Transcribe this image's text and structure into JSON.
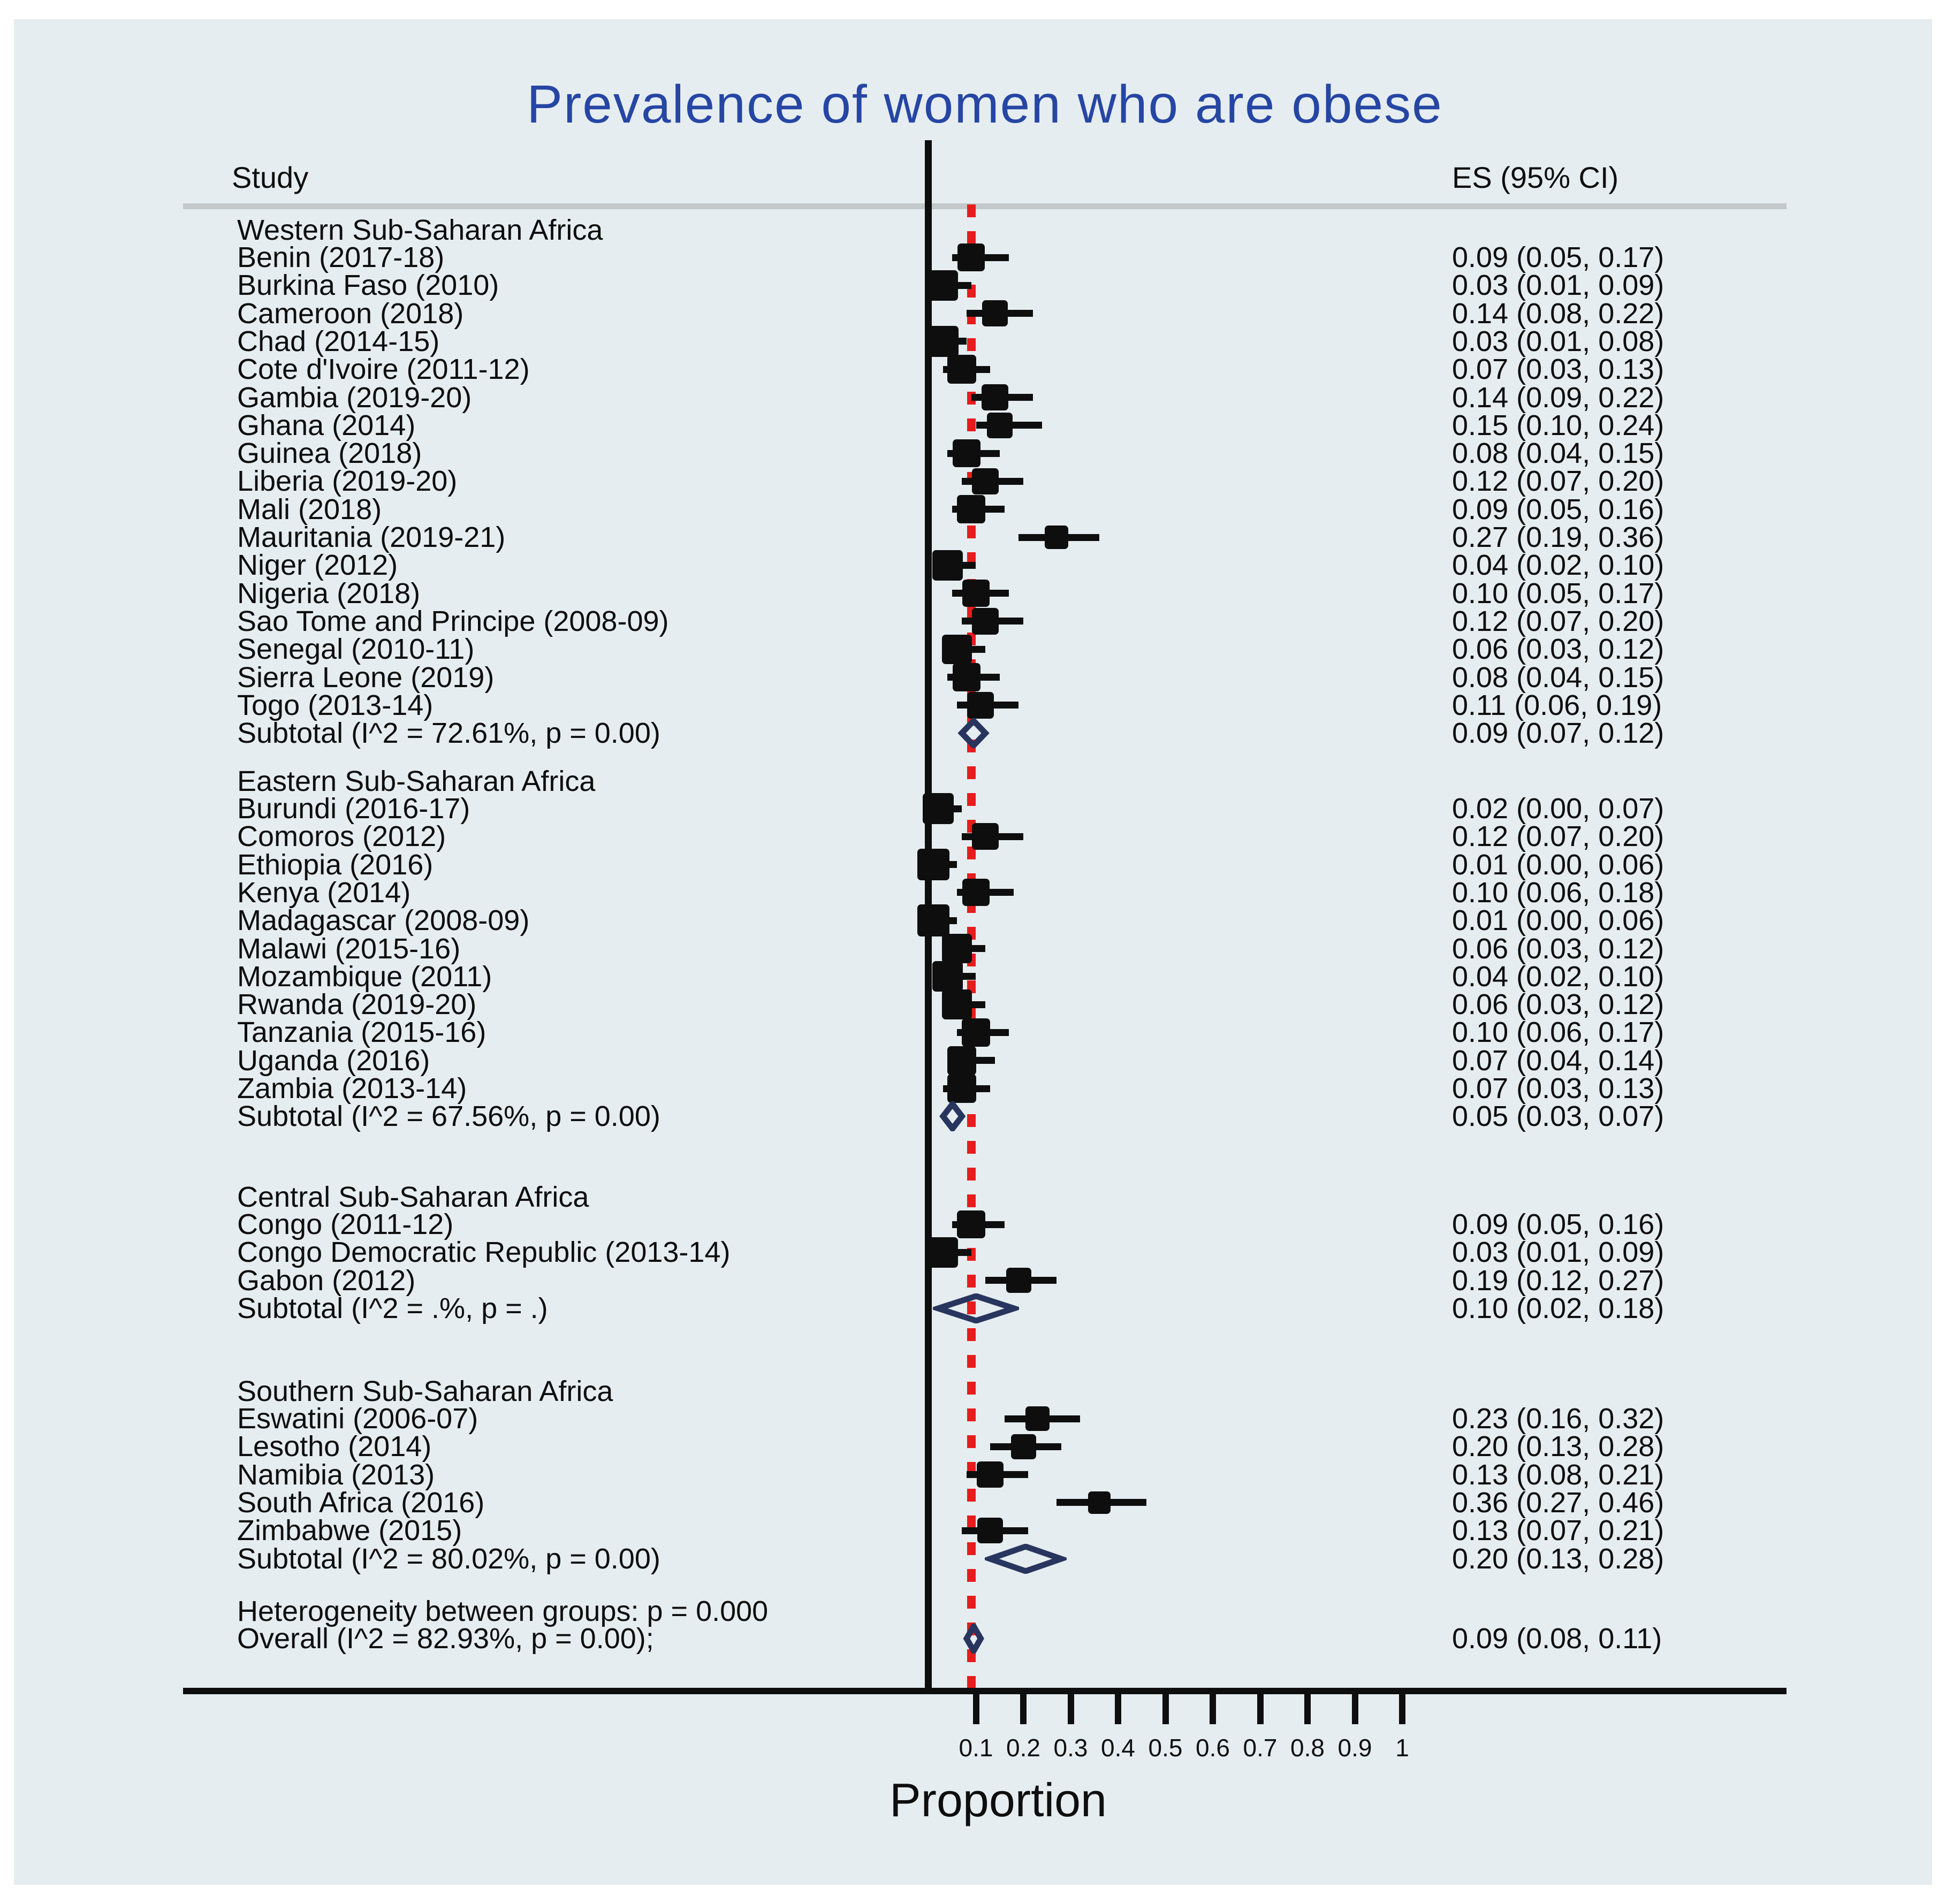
{
  "columns": {
    "study": "Study",
    "es": "ES (95% CI)"
  },
  "heterogeneity_note": "Heterogeneity between groups: p = 0.000",
  "chart_data": {
    "type": "forest",
    "title": "Prevalence of women who are obese",
    "xlabel": "Proportion",
    "xlim": [
      0,
      1
    ],
    "axis": {
      "label": "Proportion",
      "tick_labels": [
        "0.1",
        "0.2",
        "0.3",
        "0.4",
        "0.5",
        "0.6",
        "0.7",
        "0.8",
        "0.9",
        "1"
      ],
      "tick_values": [
        0.1,
        0.2,
        0.3,
        0.4,
        0.5,
        0.6,
        0.7,
        0.8,
        0.9,
        1.0
      ]
    },
    "reference_line": {
      "value": 0.09,
      "style": "dashed",
      "color": "#e81c1c"
    },
    "zero_line_value": 0,
    "colors": {
      "marker": "#0e0e0e",
      "diamond": "#28355e",
      "reference": "#e81c1c",
      "title": "#2646a4",
      "panel": "#e6edf0"
    },
    "groups": [
      {
        "name": "Western Sub-Saharan Africa",
        "studies": [
          {
            "label": "Benin (2017-18)",
            "es": 0.09,
            "lower": 0.05,
            "upper": 0.17,
            "es_text": "0.09 (0.05, 0.17)"
          },
          {
            "label": "Burkina Faso (2010)",
            "es": 0.03,
            "lower": 0.01,
            "upper": 0.09,
            "es_text": "0.03 (0.01, 0.09)"
          },
          {
            "label": "Cameroon (2018)",
            "es": 0.14,
            "lower": 0.08,
            "upper": 0.22,
            "es_text": "0.14 (0.08, 0.22)"
          },
          {
            "label": "Chad (2014-15)",
            "es": 0.03,
            "lower": 0.01,
            "upper": 0.08,
            "es_text": "0.03 (0.01, 0.08)"
          },
          {
            "label": "Cote d'Ivoire (2011-12)",
            "es": 0.07,
            "lower": 0.03,
            "upper": 0.13,
            "es_text": "0.07 (0.03, 0.13)"
          },
          {
            "label": "Gambia (2019-20)",
            "es": 0.14,
            "lower": 0.09,
            "upper": 0.22,
            "es_text": "0.14 (0.09, 0.22)"
          },
          {
            "label": "Ghana (2014)",
            "es": 0.15,
            "lower": 0.1,
            "upper": 0.24,
            "es_text": "0.15 (0.10, 0.24)"
          },
          {
            "label": "Guinea (2018)",
            "es": 0.08,
            "lower": 0.04,
            "upper": 0.15,
            "es_text": "0.08 (0.04, 0.15)"
          },
          {
            "label": "Liberia (2019-20)",
            "es": 0.12,
            "lower": 0.07,
            "upper": 0.2,
            "es_text": "0.12 (0.07, 0.20)"
          },
          {
            "label": "Mali (2018)",
            "es": 0.09,
            "lower": 0.05,
            "upper": 0.16,
            "es_text": "0.09 (0.05, 0.16)"
          },
          {
            "label": "Mauritania (2019-21)",
            "es": 0.27,
            "lower": 0.19,
            "upper": 0.36,
            "es_text": "0.27 (0.19, 0.36)"
          },
          {
            "label": "Niger (2012)",
            "es": 0.04,
            "lower": 0.02,
            "upper": 0.1,
            "es_text": "0.04 (0.02, 0.10)"
          },
          {
            "label": "Nigeria (2018)",
            "es": 0.1,
            "lower": 0.05,
            "upper": 0.17,
            "es_text": "0.10 (0.05, 0.17)"
          },
          {
            "label": "Sao Tome and Principe (2008-09)",
            "es": 0.12,
            "lower": 0.07,
            "upper": 0.2,
            "es_text": "0.12 (0.07, 0.20)"
          },
          {
            "label": "Senegal (2010-11)",
            "es": 0.06,
            "lower": 0.03,
            "upper": 0.12,
            "es_text": "0.06 (0.03, 0.12)"
          },
          {
            "label": "Sierra Leone (2019)",
            "es": 0.08,
            "lower": 0.04,
            "upper": 0.15,
            "es_text": "0.08 (0.04, 0.15)"
          },
          {
            "label": "Togo (2013-14)",
            "es": 0.11,
            "lower": 0.06,
            "upper": 0.19,
            "es_text": "0.11 (0.06, 0.19)"
          }
        ],
        "subtotal": {
          "label": "Subtotal  (I^2 = 72.61%, p = 0.00)",
          "es": 0.09,
          "lower": 0.07,
          "upper": 0.12,
          "es_text": "0.09 (0.07, 0.12)"
        }
      },
      {
        "name": "Eastern Sub-Saharan Africa",
        "studies": [
          {
            "label": "Burundi (2016-17)",
            "es": 0.02,
            "lower": 0.0,
            "upper": 0.07,
            "es_text": "0.02 (0.00, 0.07)"
          },
          {
            "label": "Comoros (2012)",
            "es": 0.12,
            "lower": 0.07,
            "upper": 0.2,
            "es_text": "0.12 (0.07, 0.20)"
          },
          {
            "label": "Ethiopia (2016)",
            "es": 0.01,
            "lower": 0.0,
            "upper": 0.06,
            "es_text": "0.01 (0.00, 0.06)"
          },
          {
            "label": "Kenya (2014)",
            "es": 0.1,
            "lower": 0.06,
            "upper": 0.18,
            "es_text": "0.10 (0.06, 0.18)"
          },
          {
            "label": "Madagascar (2008-09)",
            "es": 0.01,
            "lower": 0.0,
            "upper": 0.06,
            "es_text": "0.01 (0.00, 0.06)"
          },
          {
            "label": "Malawi (2015-16)",
            "es": 0.06,
            "lower": 0.03,
            "upper": 0.12,
            "es_text": "0.06 (0.03, 0.12)"
          },
          {
            "label": "Mozambique (2011)",
            "es": 0.04,
            "lower": 0.02,
            "upper": 0.1,
            "es_text": "0.04 (0.02, 0.10)"
          },
          {
            "label": "Rwanda (2019-20)",
            "es": 0.06,
            "lower": 0.03,
            "upper": 0.12,
            "es_text": "0.06 (0.03, 0.12)"
          },
          {
            "label": "Tanzania (2015-16)",
            "es": 0.1,
            "lower": 0.06,
            "upper": 0.17,
            "es_text": "0.10 (0.06, 0.17)"
          },
          {
            "label": "Uganda (2016)",
            "es": 0.07,
            "lower": 0.04,
            "upper": 0.14,
            "es_text": "0.07 (0.04, 0.14)"
          },
          {
            "label": "Zambia (2013-14)",
            "es": 0.07,
            "lower": 0.03,
            "upper": 0.13,
            "es_text": "0.07 (0.03, 0.13)"
          }
        ],
        "subtotal": {
          "label": "Subtotal  (I^2 = 67.56%, p = 0.00)",
          "es": 0.05,
          "lower": 0.03,
          "upper": 0.07,
          "es_text": "0.05 (0.03, 0.07)"
        }
      },
      {
        "name": "Central Sub-Saharan Africa",
        "studies": [
          {
            "label": "Congo (2011-12)",
            "es": 0.09,
            "lower": 0.05,
            "upper": 0.16,
            "es_text": "0.09 (0.05, 0.16)"
          },
          {
            "label": "Congo Democratic Republic (2013-14)",
            "es": 0.03,
            "lower": 0.01,
            "upper": 0.09,
            "es_text": "0.03 (0.01, 0.09)"
          },
          {
            "label": "Gabon (2012)",
            "es": 0.19,
            "lower": 0.12,
            "upper": 0.27,
            "es_text": "0.19 (0.12, 0.27)"
          }
        ],
        "subtotal": {
          "label": "Subtotal  (I^2 = .%, p = .)",
          "es": 0.1,
          "lower": 0.02,
          "upper": 0.18,
          "es_text": "0.10 (0.02, 0.18)"
        }
      },
      {
        "name": "Southern Sub-Saharan Africa",
        "studies": [
          {
            "label": "Eswatini (2006-07)",
            "es": 0.23,
            "lower": 0.16,
            "upper": 0.32,
            "es_text": "0.23 (0.16, 0.32)"
          },
          {
            "label": "Lesotho (2014)",
            "es": 0.2,
            "lower": 0.13,
            "upper": 0.28,
            "es_text": "0.20 (0.13, 0.28)"
          },
          {
            "label": "Namibia (2013)",
            "es": 0.13,
            "lower": 0.08,
            "upper": 0.21,
            "es_text": "0.13 (0.08, 0.21)"
          },
          {
            "label": "South Africa (2016)",
            "es": 0.36,
            "lower": 0.27,
            "upper": 0.46,
            "es_text": "0.36 (0.27, 0.46)"
          },
          {
            "label": "Zimbabwe (2015)",
            "es": 0.13,
            "lower": 0.07,
            "upper": 0.21,
            "es_text": "0.13 (0.07, 0.21)"
          }
        ],
        "subtotal": {
          "label": "Subtotal  (I^2 = 80.02%, p = 0.00)",
          "es": 0.2,
          "lower": 0.13,
          "upper": 0.28,
          "es_text": "0.20 (0.13, 0.28)"
        }
      }
    ],
    "overall": {
      "label": "Overall  (I^2 = 82.93%, p = 0.00);",
      "es": 0.09,
      "lower": 0.08,
      "upper": 0.11,
      "es_text": "0.09 (0.08, 0.11)"
    }
  }
}
